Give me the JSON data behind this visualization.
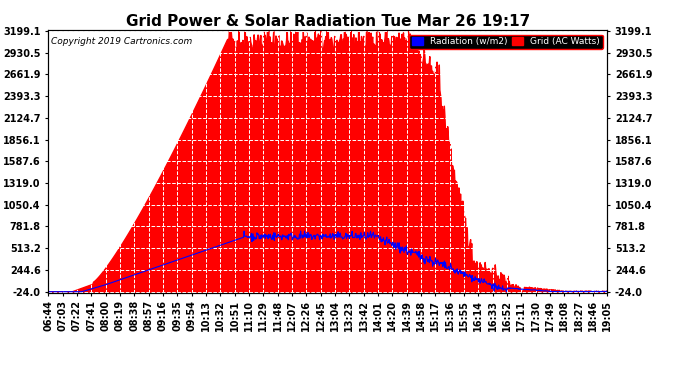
{
  "title": "Grid Power & Solar Radiation Tue Mar 26 19:17",
  "copyright": "Copyright 2019 Cartronics.com",
  "legend_labels": [
    "Radiation (w/m2)",
    "Grid (AC Watts)"
  ],
  "legend_colors": [
    "blue",
    "red"
  ],
  "yticks": [
    -24.0,
    244.6,
    513.2,
    781.8,
    1050.4,
    1319.0,
    1587.6,
    1856.1,
    2124.7,
    2393.3,
    2661.9,
    2930.5,
    3199.1
  ],
  "ymin": -24.0,
  "ymax": 3199.1,
  "grid_color": "#aaaaaa",
  "bg_color": "#ffffff",
  "plot_bg_color": "#ffffff",
  "red_fill_color": "#ff0000",
  "blue_line_color": "#0000ff",
  "title_fontsize": 11,
  "axis_label_fontsize": 7,
  "xtick_labels": [
    "06:44",
    "07:03",
    "07:22",
    "07:41",
    "08:00",
    "08:19",
    "08:38",
    "08:57",
    "09:16",
    "09:35",
    "09:54",
    "10:13",
    "10:32",
    "10:51",
    "11:10",
    "11:29",
    "11:48",
    "12:07",
    "12:26",
    "12:45",
    "13:04",
    "13:23",
    "13:42",
    "14:01",
    "14:20",
    "14:39",
    "14:58",
    "15:17",
    "15:36",
    "15:55",
    "16:14",
    "16:33",
    "16:52",
    "17:11",
    "17:30",
    "17:49",
    "18:08",
    "18:27",
    "18:46",
    "19:05"
  ]
}
